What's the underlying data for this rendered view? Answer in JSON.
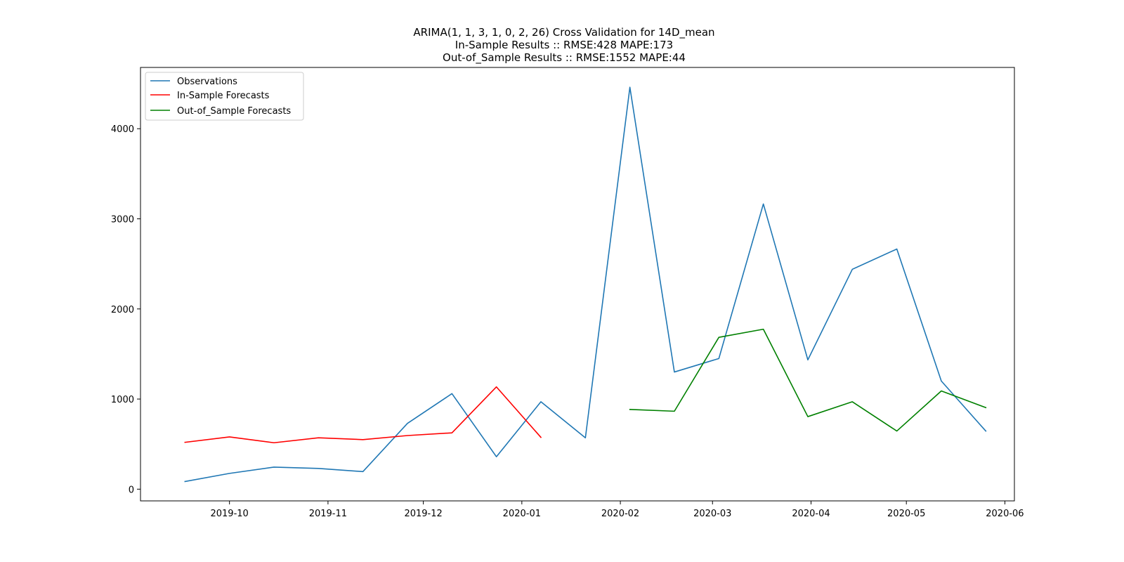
{
  "chart_data": {
    "type": "line",
    "title_lines": [
      "ARIMA(1, 1, 3, 1, 0, 2, 26) Cross Validation for 14D_mean",
      "In-Sample Results :: RMSE:428 MAPE:173",
      "Out-of_Sample Results :: RMSE:1552 MAPE:44"
    ],
    "xlabel": "",
    "ylabel": "",
    "xlim": [
      "2019-09-03",
      "2020-06-04"
    ],
    "ylim": [
      -130,
      4680
    ],
    "x_ticks": [
      "2019-10-01",
      "2019-11-01",
      "2019-12-01",
      "2020-01-01",
      "2020-02-01",
      "2020-03-01",
      "2020-04-01",
      "2020-05-01",
      "2020-06-01"
    ],
    "x_tick_labels": [
      "2019-10",
      "2019-11",
      "2019-12",
      "2020-01",
      "2020-02",
      "2020-03",
      "2020-04",
      "2020-05",
      "2020-06"
    ],
    "y_ticks": [
      0,
      1000,
      2000,
      3000,
      4000
    ],
    "y_tick_labels": [
      "0",
      "1000",
      "2000",
      "3000",
      "4000"
    ],
    "grid": false,
    "legend_position": "top-left",
    "series": [
      {
        "name": "Observations",
        "color": "#1f77b4",
        "x": [
          "2019-09-17",
          "2019-10-01",
          "2019-10-15",
          "2019-10-29",
          "2019-11-12",
          "2019-11-26",
          "2019-12-10",
          "2019-12-24",
          "2020-01-07",
          "2020-01-21",
          "2020-02-04",
          "2020-02-18",
          "2020-03-03",
          "2020-03-17",
          "2020-03-31",
          "2020-04-14",
          "2020-04-28",
          "2020-05-12",
          "2020-05-26"
        ],
        "y": [
          85,
          175,
          245,
          230,
          195,
          730,
          1060,
          360,
          970,
          570,
          4460,
          1300,
          1450,
          3165,
          1435,
          2440,
          2665,
          1200,
          645
        ]
      },
      {
        "name": "In-Sample Forecasts",
        "color": "#ff0000",
        "x": [
          "2019-09-17",
          "2019-10-01",
          "2019-10-15",
          "2019-10-29",
          "2019-11-12",
          "2019-11-26",
          "2019-12-10",
          "2019-12-24",
          "2020-01-07"
        ],
        "y": [
          520,
          580,
          515,
          570,
          550,
          595,
          625,
          1135,
          575
        ]
      },
      {
        "name": "Out-of_Sample Forecasts",
        "color": "#008000",
        "x": [
          "2020-02-04",
          "2020-02-18",
          "2020-03-03",
          "2020-03-17",
          "2020-03-31",
          "2020-04-14",
          "2020-04-28",
          "2020-05-12",
          "2020-05-26"
        ],
        "y": [
          885,
          865,
          1685,
          1775,
          805,
          970,
          645,
          1090,
          905
        ]
      }
    ]
  }
}
